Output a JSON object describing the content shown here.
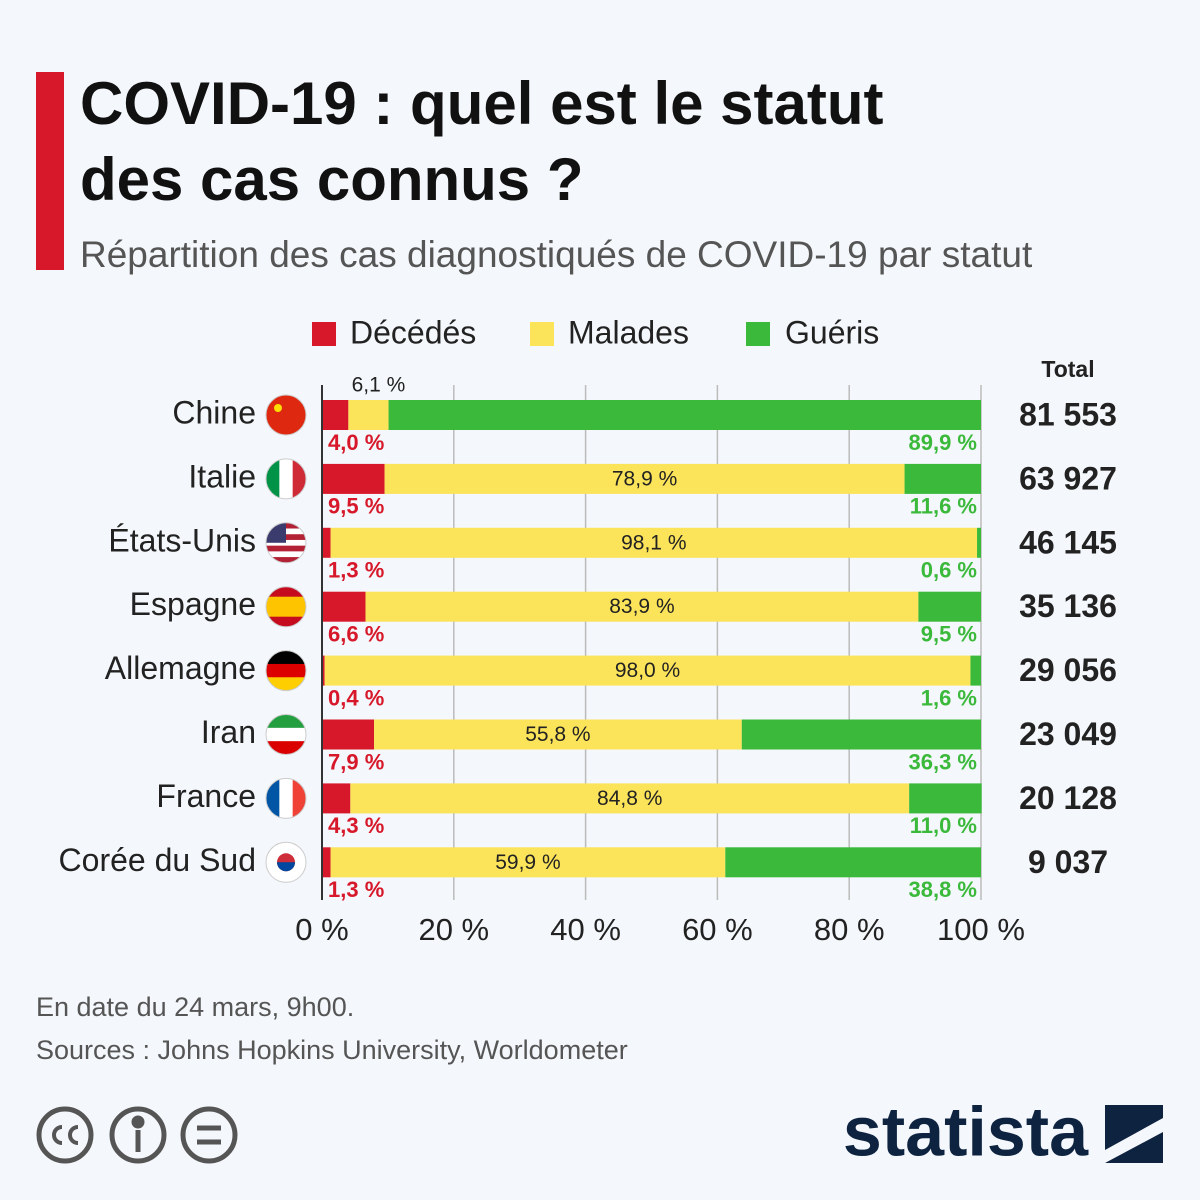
{
  "chart_data": {
    "type": "stacked_bar_horizontal",
    "title": "COVID-19 : quel est le statut\ndes cas connus ?",
    "subtitle": "Répartition des cas diagnostiqués de COVID-19 par statut",
    "categories": [
      "Chine",
      "Italie",
      "États-Unis",
      "Espagne",
      "Allemagne",
      "Iran",
      "France",
      "Corée du Sud"
    ],
    "series": [
      {
        "name": "Décédés",
        "color": "#d7182a",
        "values": [
          4.0,
          9.5,
          1.3,
          6.6,
          0.4,
          7.9,
          4.3,
          1.3
        ],
        "value_labels": [
          "4,0 %",
          "9,5 %",
          "1,3 %",
          "6,6 %",
          "0,4 %",
          "7,9 %",
          "4,3 %",
          "1,3 %"
        ]
      },
      {
        "name": "Malades",
        "color": "#fbe35a",
        "values": [
          6.1,
          78.9,
          98.1,
          83.9,
          98.0,
          55.8,
          84.8,
          59.9
        ],
        "value_labels": [
          "6,1 %",
          "78,9 %",
          "98,1 %",
          "83,9 %",
          "98,0 %",
          "55,8 %",
          "84,8 %",
          "59,9 %"
        ]
      },
      {
        "name": "Guéris",
        "color": "#3bb93b",
        "values": [
          89.9,
          11.6,
          0.6,
          9.5,
          1.6,
          36.3,
          11.0,
          38.8
        ],
        "value_labels": [
          "89,9 %",
          "11,6 %",
          "0,6 %",
          "9,5 %",
          "1,6 %",
          "36,3 %",
          "11,0 %",
          "38,8 %"
        ]
      }
    ],
    "totals": {
      "name": "Total",
      "values": [
        81553,
        63927,
        46145,
        35136,
        29056,
        23049,
        20128,
        9037
      ],
      "value_labels": [
        "81 553",
        "63 927",
        "46 145",
        "35 136",
        "29 056",
        "23 049",
        "20 128",
        "9 037"
      ]
    },
    "xlim": [
      0,
      100
    ],
    "xticks": [
      {
        "value": 0,
        "label": "0 %"
      },
      {
        "value": 20,
        "label": "20 %"
      },
      {
        "value": 40,
        "label": "40 %"
      },
      {
        "value": 60,
        "label": "60 %"
      },
      {
        "value": 80,
        "label": "80 %"
      },
      {
        "value": 100,
        "label": "100 %"
      }
    ],
    "grid": true,
    "note": "En date du 24 mars, 9h00.",
    "source": "Sources : Johns Hopkins University, Worldometer",
    "brand": "statista"
  }
}
